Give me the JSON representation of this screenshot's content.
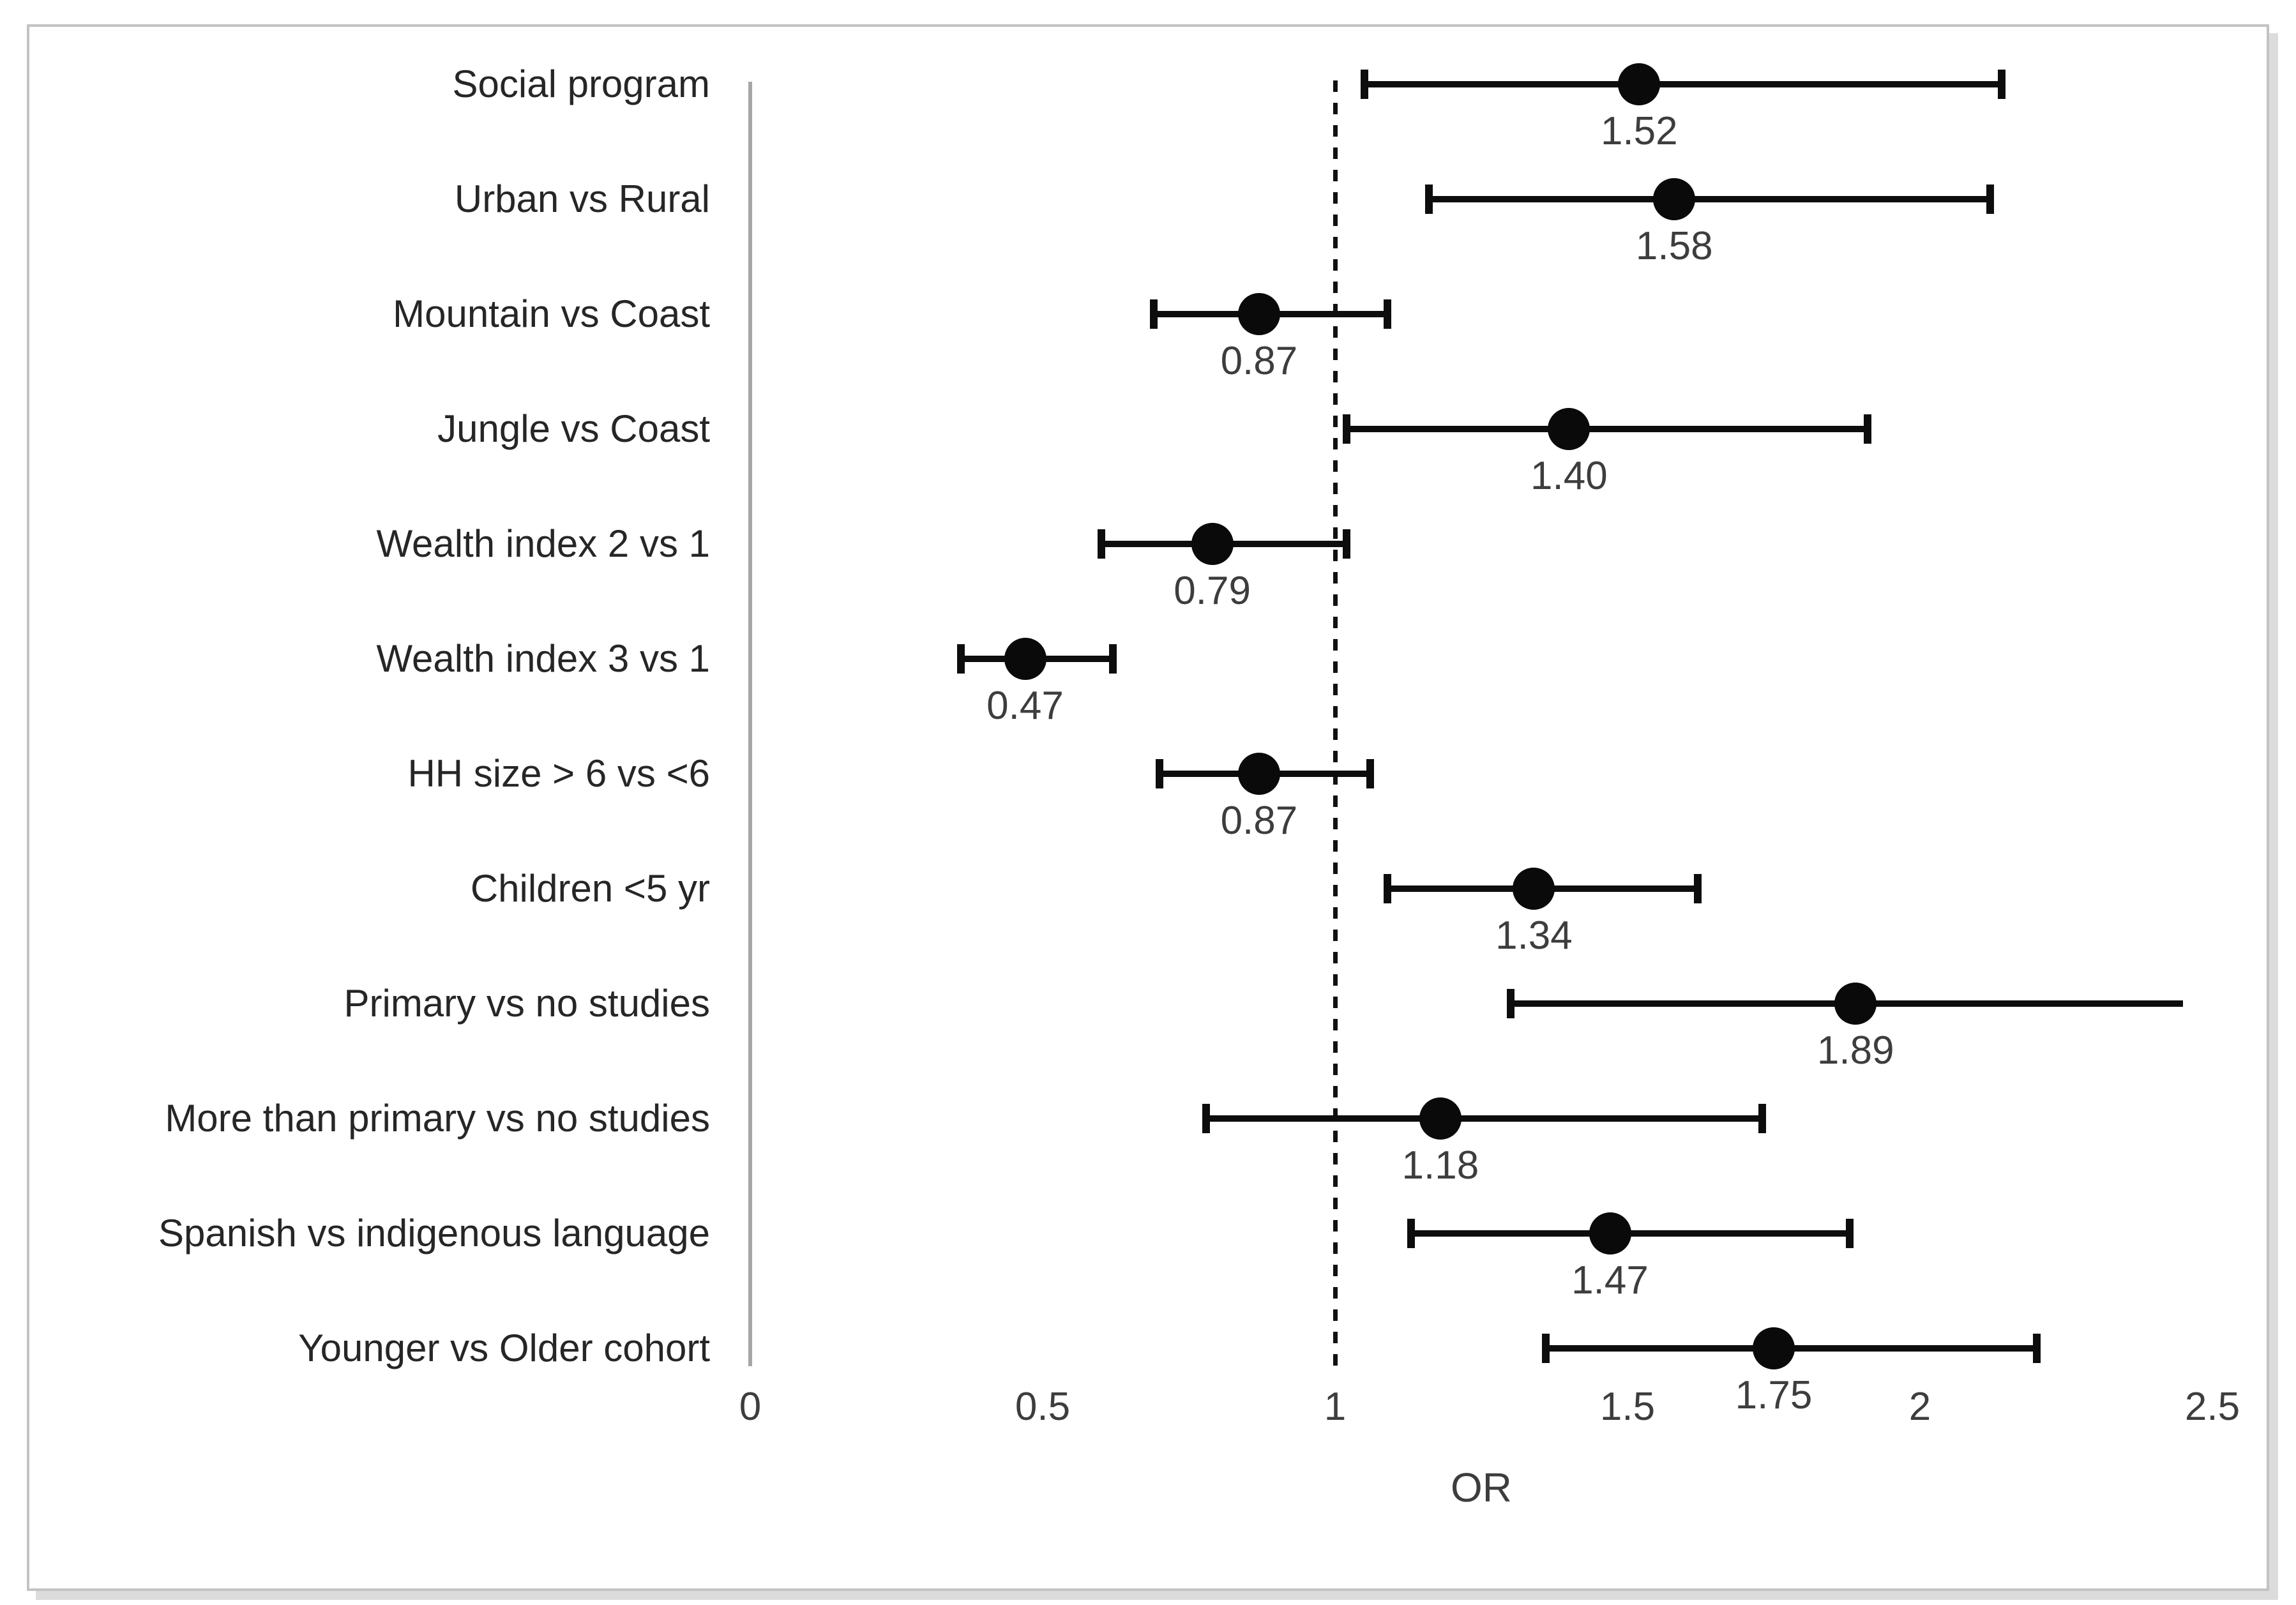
{
  "chart_data": {
    "type": "scatter",
    "subtype": "forest-plot",
    "title": "",
    "xlabel": "OR",
    "ylabel": "",
    "xlim": [
      0,
      2.6
    ],
    "x_ticks": [
      0,
      0.5,
      1,
      1.5,
      2,
      2.5
    ],
    "x_tick_labels": [
      "0",
      "0.5",
      "1",
      "1.5",
      "2",
      "2.5"
    ],
    "reference_line_x": 1,
    "grid": false,
    "legend": "none",
    "rows": [
      {
        "label": "Social program",
        "or": 1.52,
        "or_label": "1.52",
        "ci_low": 1.05,
        "ci_high": 2.14,
        "cap_left": true,
        "cap_right": true
      },
      {
        "label": "Urban vs Rural",
        "or": 1.58,
        "or_label": "1.58",
        "ci_low": 1.16,
        "ci_high": 2.12,
        "cap_left": true,
        "cap_right": true
      },
      {
        "label": "Mountain vs Coast",
        "or": 0.87,
        "or_label": "0.87",
        "ci_low": 0.69,
        "ci_high": 1.09,
        "cap_left": true,
        "cap_right": true
      },
      {
        "label": "Jungle vs Coast",
        "or": 1.4,
        "or_label": "1.40",
        "ci_low": 1.02,
        "ci_high": 1.91,
        "cap_left": true,
        "cap_right": true
      },
      {
        "label": "Wealth index 2 vs 1",
        "or": 0.79,
        "or_label": "0.79",
        "ci_low": 0.6,
        "ci_high": 1.02,
        "cap_left": true,
        "cap_right": true
      },
      {
        "label": "Wealth index 3 vs 1",
        "or": 0.47,
        "or_label": "0.47",
        "ci_low": 0.36,
        "ci_high": 0.62,
        "cap_left": true,
        "cap_right": true
      },
      {
        "label": "HH size > 6 vs <6",
        "or": 0.87,
        "or_label": "0.87",
        "ci_low": 0.7,
        "ci_high": 1.06,
        "cap_left": true,
        "cap_right": true
      },
      {
        "label": "Children <5 yr",
        "or": 1.34,
        "or_label": "1.34",
        "ci_low": 1.09,
        "ci_high": 1.62,
        "cap_left": true,
        "cap_right": true
      },
      {
        "label": "Primary vs no studies",
        "or": 1.89,
        "or_label": "1.89",
        "ci_low": 1.3,
        "ci_high": 2.45,
        "cap_left": true,
        "cap_right": false
      },
      {
        "label": "More than primary vs no studies",
        "or": 1.18,
        "or_label": "1.18",
        "ci_low": 0.78,
        "ci_high": 1.73,
        "cap_left": true,
        "cap_right": true
      },
      {
        "label": "Spanish vs indigenous language",
        "or": 1.47,
        "or_label": "1.47",
        "ci_low": 1.13,
        "ci_high": 1.88,
        "cap_left": true,
        "cap_right": true
      },
      {
        "label": "Younger vs Older cohort",
        "or": 1.75,
        "or_label": "1.75",
        "ci_low": 1.36,
        "ci_high": 2.2,
        "cap_left": true,
        "cap_right": true
      }
    ],
    "colors": {
      "marker": "#0a0a0a",
      "error_bar": "#0d0d0d",
      "reference_line": "#111111",
      "category_axis_line": "#a6a6a6",
      "frame_border": "#c3c3c3",
      "text": "#3d3d3d"
    }
  }
}
